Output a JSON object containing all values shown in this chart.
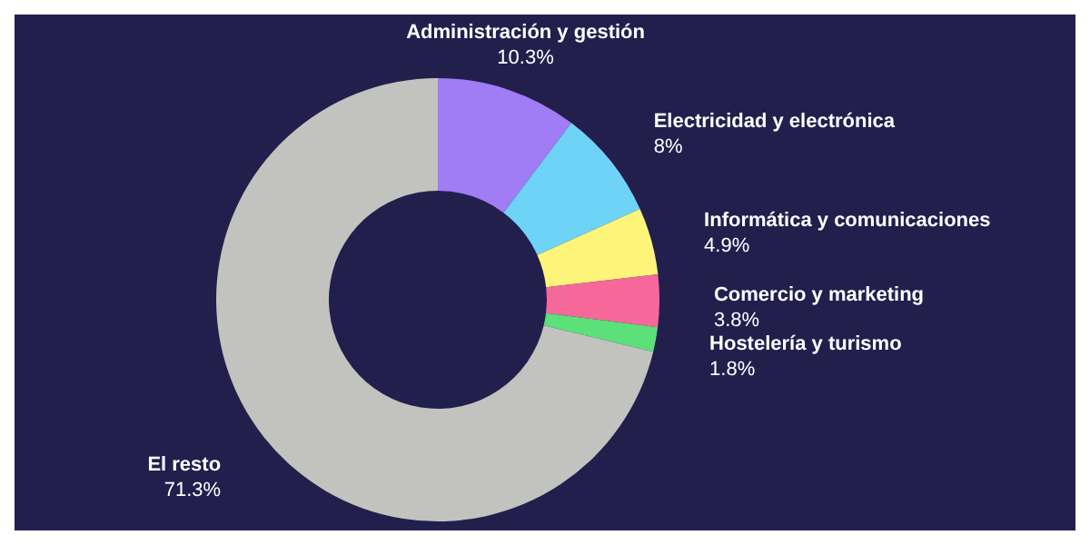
{
  "chart_data": {
    "type": "donut",
    "categories": [
      "Administración y gestión",
      "Electricidad y electrónica",
      "Informática y comunicaciones",
      "Comercio y marketing",
      "Hostelería y turismo",
      "El resto"
    ],
    "values": [
      10.3,
      8,
      4.9,
      3.8,
      1.8,
      71.3
    ],
    "value_labels": [
      "10.3%",
      "8%",
      "4.9%",
      "3.8%",
      "1.8%",
      "71.3%"
    ],
    "colors": [
      "#a07cf5",
      "#6ed3f7",
      "#fdf57a",
      "#f7689a",
      "#5be07a",
      "#c2c3bf"
    ],
    "legend": false
  }
}
